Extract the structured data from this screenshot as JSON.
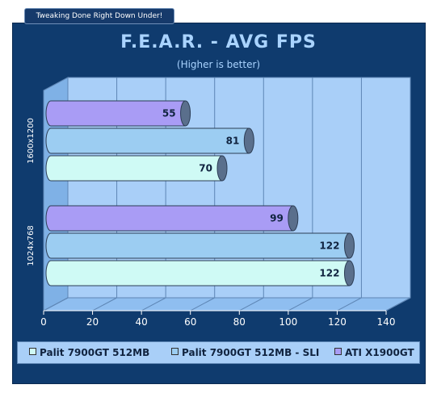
{
  "banner": "Tweaking Done Right Down Under!",
  "chart_data": {
    "type": "bar",
    "orientation": "horizontal",
    "title": "F.E.A.R. - AVG FPS",
    "subtitle": "(Higher is better)",
    "categories": [
      "1600x1200",
      "1024x768"
    ],
    "series": [
      {
        "name": "Palit 7900GT 512MB",
        "values": [
          70,
          122
        ],
        "color": "#cffaf5"
      },
      {
        "name": "Palit 7900GT 512MB - SLI",
        "values": [
          81,
          122
        ],
        "color": "#9ccdf2"
      },
      {
        "name": "ATI X1900GT",
        "values": [
          55,
          99
        ],
        "color": "#a99cf5"
      }
    ],
    "xlim": [
      0,
      140
    ],
    "xticks": [
      "0",
      "20",
      "40",
      "60",
      "80",
      "100",
      "120",
      "140"
    ],
    "grid": true,
    "legend_position": "bottom"
  },
  "colors": {
    "panel": "#0f3b6e",
    "plot_area": "#a9cff8",
    "title": "#a9d3ff"
  }
}
